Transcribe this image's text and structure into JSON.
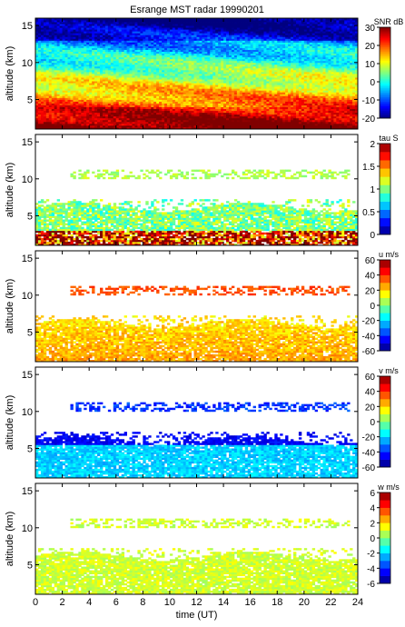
{
  "title": "Esrange MST radar 19990201",
  "chart_data": [
    {
      "type": "heatmap",
      "quantity": "snr",
      "ylabel": "altitude (km)",
      "xlabel": "",
      "xlim": [
        0,
        24
      ],
      "ylim": [
        1,
        16
      ],
      "y_ticks": [
        5,
        10,
        15
      ],
      "colorbar": {
        "label": "SNR dB",
        "min": -20,
        "max": 30,
        "ticks": [
          -20,
          -10,
          0,
          10,
          20,
          30
        ]
      },
      "coverage": "full 0-24 UT, 1-16 km"
    },
    {
      "type": "heatmap",
      "quantity": "tau",
      "ylabel": "altitude (km)",
      "xlabel": "",
      "xlim": [
        0,
        24
      ],
      "ylim": [
        1,
        16
      ],
      "y_ticks": [
        5,
        10,
        15
      ],
      "colorbar": {
        "label": "tau S",
        "min": 0,
        "max": 2,
        "ticks": [
          0,
          0.5,
          1,
          1.5,
          2
        ]
      },
      "coverage": "1-7 km plus thin layer near 10-11 km"
    },
    {
      "type": "heatmap",
      "quantity": "u",
      "ylabel": "altitude (km)",
      "xlabel": "",
      "xlim": [
        0,
        24
      ],
      "ylim": [
        1,
        16
      ],
      "y_ticks": [
        5,
        10,
        15
      ],
      "colorbar": {
        "label": "u m/s",
        "min": -60,
        "max": 60,
        "ticks": [
          -60,
          -40,
          -20,
          0,
          20,
          40,
          60
        ]
      },
      "coverage": "1-7 km plus thin layer near 10-11 km"
    },
    {
      "type": "heatmap",
      "quantity": "v",
      "ylabel": "altitude (km)",
      "xlabel": "",
      "xlim": [
        0,
        24
      ],
      "ylim": [
        1,
        16
      ],
      "y_ticks": [
        5,
        10,
        15
      ],
      "colorbar": {
        "label": "v m/s",
        "min": -60,
        "max": 60,
        "ticks": [
          -60,
          -40,
          -20,
          0,
          20,
          40,
          60
        ]
      },
      "coverage": "1-7 km plus thin layer near 10-11 km"
    },
    {
      "type": "heatmap",
      "quantity": "w",
      "ylabel": "altitude (km)",
      "xlabel": "time (UT)",
      "xlim": [
        0,
        24
      ],
      "ylim": [
        1,
        16
      ],
      "y_ticks": [
        5,
        10,
        15
      ],
      "x_ticks": [
        0,
        2,
        4,
        6,
        8,
        10,
        12,
        14,
        16,
        18,
        20,
        22,
        24
      ],
      "colorbar": {
        "label": "w m/s",
        "min": -6,
        "max": 6,
        "ticks": [
          -6,
          -4,
          -2,
          0,
          2,
          4,
          6
        ]
      },
      "coverage": "1-7 km plus thin layer near 10-11 km"
    }
  ]
}
